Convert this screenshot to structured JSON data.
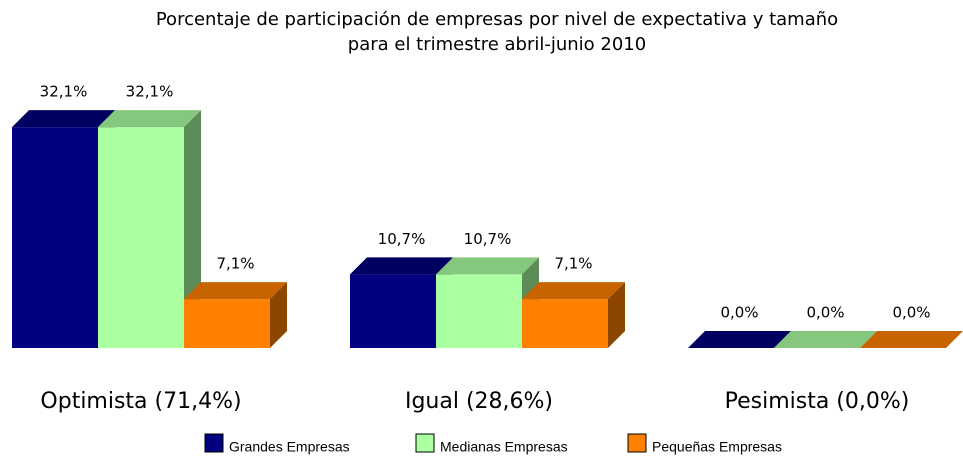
{
  "chart_data": {
    "type": "bar3d",
    "title": [
      "Porcentaje de participación de empresas por nivel de expectativa y tamaño",
      "para el trimestre abril-junio 2010"
    ],
    "categories": [
      "Optimista (71,4%)",
      "Igual (28,6%)",
      "Pesimista (0,0%)"
    ],
    "series": [
      {
        "name": "Grandes Empresas",
        "color": "#000080",
        "values": [
          32.1,
          10.7,
          0
        ],
        "value_labels": [
          "32,1%",
          "10,7%",
          "0,0%"
        ]
      },
      {
        "name": "Medianas Empresas",
        "color": "#aaffa0",
        "values": [
          32.1,
          10.7,
          0
        ],
        "value_labels": [
          "32,1%",
          "10,7%",
          "0,0%"
        ]
      },
      {
        "name": "Pequeñas Empresas",
        "color": "#ff8000",
        "values": [
          7.1,
          7.1,
          0
        ],
        "value_labels": [
          "7,1%",
          "7,1%",
          "0,0%"
        ]
      }
    ],
    "legend": "bottom"
  }
}
